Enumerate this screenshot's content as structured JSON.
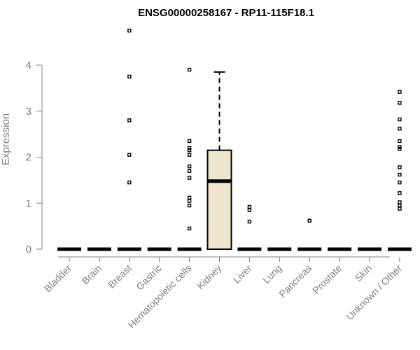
{
  "chart_data": {
    "type": "box",
    "title": "ENSG00000258167 - RP11-115F18.1",
    "xlabel": "",
    "ylabel": "Expression",
    "ylim": [
      0,
      4.8
    ],
    "yticks": [
      0,
      1,
      2,
      3,
      4
    ],
    "grid": false,
    "legend": "none",
    "categories": [
      "Bladder",
      "Brain",
      "Breast",
      "Gastric",
      "Hematopoietic cells",
      "Kidney",
      "Liver",
      "Lung",
      "Pancreas",
      "Prostate",
      "Skin",
      "Unknown / Other"
    ],
    "box_fill": "#ede6cc",
    "boxes": [
      {
        "category": "Bladder",
        "min": 0,
        "q1": 0,
        "median": 0,
        "q3": 0,
        "max": 0,
        "outliers": []
      },
      {
        "category": "Brain",
        "min": 0,
        "q1": 0,
        "median": 0,
        "q3": 0,
        "max": 0,
        "outliers": []
      },
      {
        "category": "Breast",
        "min": 0,
        "q1": 0,
        "median": 0,
        "q3": 0,
        "max": 0,
        "outliers": [
          1.45,
          2.05,
          2.8,
          3.75,
          4.75
        ]
      },
      {
        "category": "Gastric",
        "min": 0,
        "q1": 0,
        "median": 0,
        "q3": 0,
        "max": 0,
        "outliers": []
      },
      {
        "category": "Hematopoietic cells",
        "min": 0,
        "q1": 0,
        "median": 0,
        "q3": 0,
        "max": 0,
        "outliers": [
          0.45,
          0.95,
          1.05,
          1.12,
          1.55,
          1.7,
          1.8,
          2.05,
          2.15,
          2.2,
          2.35,
          3.9
        ]
      },
      {
        "category": "Kidney",
        "min": 0,
        "q1": 0,
        "median": 1.48,
        "q3": 2.15,
        "max": 3.85,
        "outliers": []
      },
      {
        "category": "Liver",
        "min": 0,
        "q1": 0,
        "median": 0,
        "q3": 0,
        "max": 0,
        "outliers": [
          0.6,
          0.85,
          0.92
        ]
      },
      {
        "category": "Lung",
        "min": 0,
        "q1": 0,
        "median": 0,
        "q3": 0,
        "max": 0,
        "outliers": []
      },
      {
        "category": "Pancreas",
        "min": 0,
        "q1": 0,
        "median": 0,
        "q3": 0,
        "max": 0,
        "outliers": [
          0.62
        ]
      },
      {
        "category": "Prostate",
        "min": 0,
        "q1": 0,
        "median": 0,
        "q3": 0,
        "max": 0,
        "outliers": []
      },
      {
        "category": "Skin",
        "min": 0,
        "q1": 0,
        "median": 0,
        "q3": 0,
        "max": 0,
        "outliers": []
      },
      {
        "category": "Unknown / Other",
        "min": 0,
        "q1": 0,
        "median": 0,
        "q3": 0,
        "max": 0,
        "outliers": [
          0.88,
          0.95,
          1.02,
          1.22,
          1.45,
          1.62,
          1.78,
          2.18,
          2.22,
          2.35,
          2.62,
          2.82,
          3.18,
          3.42
        ]
      }
    ]
  }
}
